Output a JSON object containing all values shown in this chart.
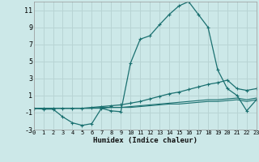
{
  "xlabel": "Humidex (Indice chaleur)",
  "bg_color": "#cce8e8",
  "grid_color": "#b8d4d4",
  "line_color": "#1a7070",
  "xlim": [
    0,
    23
  ],
  "ylim": [
    -3,
    12
  ],
  "yticks": [
    -3,
    -1,
    1,
    3,
    5,
    7,
    9,
    11
  ],
  "xticks": [
    0,
    1,
    2,
    3,
    4,
    5,
    6,
    7,
    8,
    9,
    10,
    11,
    12,
    13,
    14,
    15,
    16,
    17,
    18,
    19,
    20,
    21,
    22,
    23
  ],
  "series1_x": [
    0,
    1,
    2,
    3,
    4,
    5,
    6,
    7,
    8,
    9,
    10,
    11,
    12,
    13,
    14,
    15,
    16,
    17,
    18,
    19,
    20,
    21,
    22,
    23
  ],
  "series1_y": [
    -0.5,
    -0.6,
    -0.6,
    -1.5,
    -2.2,
    -2.5,
    -2.3,
    -0.5,
    -0.8,
    -0.9,
    4.8,
    7.6,
    8.0,
    9.3,
    10.5,
    11.5,
    12.0,
    10.5,
    9.0,
    4.0,
    1.8,
    1.0,
    -0.8,
    0.5
  ],
  "series2_x": [
    0,
    1,
    2,
    3,
    4,
    5,
    6,
    7,
    8,
    9,
    10,
    11,
    12,
    13,
    14,
    15,
    16,
    17,
    18,
    19,
    20,
    21,
    22,
    23
  ],
  "series2_y": [
    -0.5,
    -0.5,
    -0.5,
    -0.5,
    -0.5,
    -0.5,
    -0.4,
    -0.3,
    -0.2,
    -0.1,
    0.1,
    0.3,
    0.6,
    0.9,
    1.2,
    1.4,
    1.7,
    2.0,
    2.3,
    2.5,
    2.8,
    1.8,
    1.6,
    1.8
  ],
  "series3_x": [
    0,
    1,
    2,
    3,
    4,
    5,
    6,
    7,
    8,
    9,
    10,
    11,
    12,
    13,
    14,
    15,
    16,
    17,
    18,
    19,
    20,
    21,
    22,
    23
  ],
  "series3_y": [
    -0.5,
    -0.5,
    -0.5,
    -0.5,
    -0.5,
    -0.5,
    -0.5,
    -0.4,
    -0.4,
    -0.4,
    -0.3,
    -0.2,
    -0.1,
    0.0,
    0.1,
    0.2,
    0.3,
    0.4,
    0.5,
    0.5,
    0.6,
    0.7,
    0.5,
    0.7
  ],
  "series4_x": [
    0,
    1,
    2,
    3,
    4,
    5,
    6,
    7,
    8,
    9,
    10,
    11,
    12,
    13,
    14,
    15,
    16,
    17,
    18,
    19,
    20,
    21,
    22,
    23
  ],
  "series4_y": [
    -0.5,
    -0.5,
    -0.5,
    -0.5,
    -0.5,
    -0.5,
    -0.5,
    -0.5,
    -0.4,
    -0.4,
    -0.4,
    -0.3,
    -0.2,
    -0.1,
    0.0,
    0.0,
    0.1,
    0.2,
    0.3,
    0.3,
    0.4,
    0.5,
    0.3,
    0.5
  ]
}
